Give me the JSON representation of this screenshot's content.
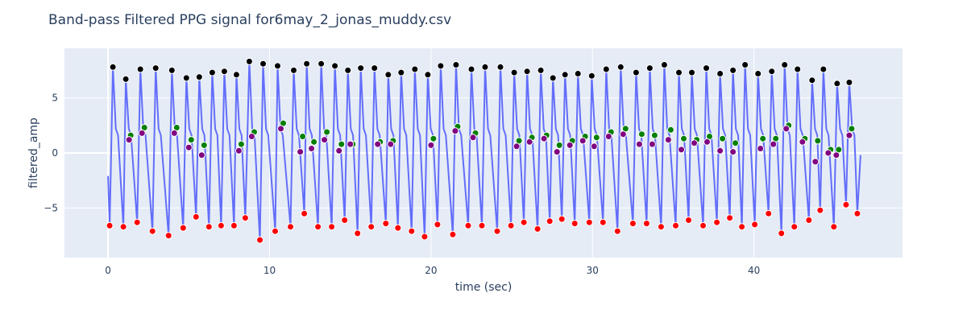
{
  "chart_data": {
    "type": "line",
    "title": "Band-pass Filtered PPG signal for6may_2_jonas_muddy.csv",
    "xlabel": "time (sec)",
    "ylabel": "filtered_amp",
    "xlim": [
      -2.7,
      49.2
    ],
    "ylim": [
      -9.5,
      9.5
    ],
    "x_ticks": [
      0,
      10,
      20,
      30,
      40
    ],
    "y_ticks": [
      -5,
      0,
      5
    ],
    "y_tick_labels": [
      "−5",
      "0",
      "5"
    ],
    "grid": true,
    "legend": "none",
    "background": "#e5ecf6",
    "colors": {
      "line": "#636efa",
      "peaks": "#000000",
      "notches": "#800080",
      "diastolic": "#008000",
      "troughs": "#ff0000"
    },
    "beats": [
      {
        "trough": [
          0.1,
          -6.6
        ],
        "peak": [
          0.3,
          7.8
        ],
        "notch": [
          1.3,
          1.2
        ],
        "diastolic": [
          1.4,
          1.6
        ]
      },
      {
        "trough": [
          0.95,
          -6.7
        ],
        "peak": [
          1.1,
          6.7
        ],
        "notch": [
          2.1,
          1.8
        ],
        "diastolic": [
          2.25,
          2.3
        ]
      },
      {
        "trough": [
          1.8,
          -6.3
        ],
        "peak": [
          2.0,
          7.6
        ],
        "notch": [
          4.1,
          1.8
        ],
        "diastolic": [
          4.25,
          2.3
        ]
      },
      {
        "trough": [
          2.75,
          -7.1
        ],
        "peak": [
          2.95,
          7.7
        ],
        "notch": [
          5.0,
          0.5
        ],
        "diastolic": [
          5.15,
          1.2
        ]
      },
      {
        "trough": [
          3.75,
          -7.5
        ],
        "peak": [
          3.95,
          7.5
        ],
        "notch": [
          5.8,
          -0.2
        ],
        "diastolic": [
          5.95,
          0.7
        ]
      },
      {
        "trough": [
          4.65,
          -6.8
        ],
        "peak": [
          4.85,
          6.8
        ],
        "notch": [
          8.1,
          0.2
        ],
        "diastolic": [
          8.25,
          0.8
        ]
      },
      {
        "trough": [
          5.45,
          -5.8
        ],
        "peak": [
          5.65,
          6.9
        ],
        "notch": [
          8.9,
          1.5
        ],
        "diastolic": [
          9.05,
          1.9
        ]
      },
      {
        "trough": [
          6.25,
          -6.7
        ],
        "peak": [
          6.45,
          7.3
        ],
        "notch": [
          10.7,
          2.2
        ],
        "diastolic": [
          10.85,
          2.7
        ]
      },
      {
        "trough": [
          7.0,
          -6.6
        ],
        "peak": [
          7.2,
          7.4
        ],
        "notch": [
          11.9,
          0.1
        ],
        "diastolic": [
          12.05,
          1.5
        ]
      },
      {
        "trough": [
          7.8,
          -6.6
        ],
        "peak": [
          7.95,
          7.1
        ],
        "notch": [
          12.6,
          0.4
        ],
        "diastolic": [
          12.75,
          1.0
        ]
      },
      {
        "trough": [
          8.5,
          -5.9
        ],
        "peak": [
          8.75,
          8.3
        ],
        "notch": [
          13.4,
          1.2
        ],
        "diastolic": [
          13.55,
          1.9
        ]
      },
      {
        "trough": [
          9.4,
          -7.9
        ],
        "peak": [
          9.6,
          8.1
        ],
        "notch": [
          14.3,
          0.2
        ],
        "diastolic": [
          14.45,
          0.8
        ]
      },
      {
        "trough": [
          10.35,
          -7.1
        ],
        "peak": [
          10.5,
          7.9
        ],
        "notch": [
          15.0,
          0.8
        ],
        "diastolic": [
          15.15,
          0.8
        ]
      },
      {
        "trough": [
          11.3,
          -6.7
        ],
        "peak": [
          11.5,
          7.5
        ],
        "notch": [
          16.7,
          0.8
        ],
        "diastolic": [
          16.85,
          1.0
        ]
      },
      {
        "trough": [
          12.15,
          -5.5
        ],
        "peak": [
          12.3,
          8.1
        ],
        "notch": [
          17.5,
          0.8
        ],
        "diastolic": [
          17.65,
          1.1
        ]
      },
      {
        "trough": [
          13.0,
          -6.7
        ],
        "peak": [
          13.2,
          8.1
        ],
        "notch": [
          20.0,
          0.7
        ],
        "diastolic": [
          20.15,
          1.3
        ]
      },
      {
        "trough": [
          13.85,
          -6.7
        ],
        "peak": [
          14.05,
          7.9
        ],
        "notch": [
          21.5,
          2.0
        ],
        "diastolic": [
          21.65,
          2.4
        ]
      },
      {
        "trough": [
          14.65,
          -6.1
        ],
        "peak": [
          14.85,
          7.5
        ],
        "notch": [
          22.6,
          1.4
        ],
        "diastolic": [
          22.75,
          1.8
        ]
      },
      {
        "trough": [
          15.45,
          -7.3
        ],
        "peak": [
          15.65,
          7.7
        ],
        "notch": [
          25.3,
          0.6
        ],
        "diastolic": [
          25.45,
          1.1
        ]
      },
      {
        "trough": [
          16.3,
          -6.7
        ],
        "peak": [
          16.5,
          7.7
        ],
        "notch": [
          26.1,
          1.0
        ],
        "diastolic": [
          26.25,
          1.4
        ]
      },
      {
        "trough": [
          17.2,
          -6.4
        ],
        "peak": [
          17.35,
          7.1
        ],
        "notch": [
          27.0,
          1.3
        ],
        "diastolic": [
          27.15,
          1.6
        ]
      },
      {
        "trough": [
          17.95,
          -6.8
        ],
        "peak": [
          18.15,
          7.3
        ],
        "notch": [
          27.8,
          0.1
        ],
        "diastolic": [
          27.95,
          0.7
        ]
      },
      {
        "trough": [
          18.8,
          -7.1
        ],
        "peak": [
          19.0,
          7.6
        ],
        "notch": [
          28.6,
          0.7
        ],
        "diastolic": [
          28.75,
          1.1
        ]
      },
      {
        "trough": [
          19.6,
          -7.6
        ],
        "peak": [
          19.8,
          7.1
        ],
        "notch": [
          29.4,
          1.1
        ],
        "diastolic": [
          29.55,
          1.5
        ]
      },
      {
        "trough": [
          20.4,
          -6.5
        ],
        "peak": [
          20.6,
          7.9
        ],
        "notch": [
          30.1,
          0.6
        ],
        "diastolic": [
          30.25,
          1.4
        ]
      },
      {
        "trough": [
          21.35,
          -7.4
        ],
        "peak": [
          21.55,
          8.0
        ],
        "notch": [
          31.0,
          1.5
        ],
        "diastolic": [
          31.15,
          1.9
        ]
      },
      {
        "trough": [
          22.3,
          -6.6
        ],
        "peak": [
          22.5,
          7.6
        ],
        "notch": [
          31.9,
          1.7
        ],
        "diastolic": [
          32.05,
          2.2
        ]
      },
      {
        "trough": [
          23.15,
          -6.6
        ],
        "peak": [
          23.35,
          7.8
        ],
        "notch": [
          32.9,
          0.8
        ],
        "diastolic": [
          33.05,
          1.7
        ]
      },
      {
        "trough": [
          24.1,
          -7.1
        ],
        "peak": [
          24.3,
          7.8
        ],
        "notch": [
          33.7,
          0.8
        ],
        "diastolic": [
          33.85,
          1.6
        ]
      },
      {
        "trough": [
          24.95,
          -6.6
        ],
        "peak": [
          25.15,
          7.3
        ],
        "notch": [
          34.7,
          1.2
        ],
        "diastolic": [
          34.85,
          2.1
        ]
      },
      {
        "trough": [
          25.75,
          -6.3
        ],
        "peak": [
          25.95,
          7.4
        ],
        "notch": [
          35.5,
          0.3
        ],
        "diastolic": [
          35.65,
          1.3
        ]
      },
      {
        "trough": [
          26.6,
          -6.9
        ],
        "peak": [
          26.8,
          7.5
        ],
        "notch": [
          36.3,
          0.9
        ],
        "diastolic": [
          36.45,
          1.2
        ]
      },
      {
        "trough": [
          27.35,
          -6.2
        ],
        "peak": [
          27.55,
          6.8
        ],
        "notch": [
          37.1,
          1.0
        ],
        "diastolic": [
          37.25,
          1.5
        ]
      },
      {
        "trough": [
          28.1,
          -6.0
        ],
        "peak": [
          28.3,
          7.1
        ],
        "notch": [
          37.9,
          0.2
        ],
        "diastolic": [
          38.05,
          1.3
        ]
      },
      {
        "trough": [
          28.9,
          -6.4
        ],
        "peak": [
          29.1,
          7.2
        ],
        "notch": [
          38.7,
          0.1
        ],
        "diastolic": [
          38.85,
          0.9
        ]
      },
      {
        "trough": [
          29.8,
          -6.3
        ],
        "peak": [
          29.95,
          7.0
        ],
        "notch": [
          40.4,
          0.4
        ],
        "diastolic": [
          40.55,
          1.3
        ]
      },
      {
        "trough": [
          30.65,
          -6.3
        ],
        "peak": [
          30.85,
          7.6
        ],
        "notch": [
          41.2,
          0.8
        ],
        "diastolic": [
          41.35,
          1.3
        ]
      },
      {
        "trough": [
          31.55,
          -7.1
        ],
        "peak": [
          31.75,
          7.8
        ],
        "notch": [
          42.0,
          2.2
        ],
        "diastolic": [
          42.15,
          2.5
        ]
      },
      {
        "trough": [
          32.5,
          -6.4
        ],
        "peak": [
          32.7,
          7.3
        ],
        "notch": [
          43.0,
          1.0
        ],
        "diastolic": [
          43.15,
          1.3
        ]
      },
      {
        "trough": [
          33.35,
          -6.4
        ],
        "peak": [
          33.55,
          7.7
        ],
        "notch": [
          43.8,
          -0.8
        ],
        "diastolic": [
          43.95,
          1.1
        ]
      },
      {
        "trough": [
          34.25,
          -6.7
        ],
        "peak": [
          34.45,
          8.0
        ],
        "notch": [
          44.6,
          0.0
        ],
        "diastolic": [
          44.75,
          0.3
        ]
      },
      {
        "trough": [
          35.15,
          -6.6
        ],
        "peak": [
          35.35,
          7.3
        ],
        "notch": [
          45.1,
          -0.2
        ],
        "diastolic": [
          45.25,
          0.3
        ]
      },
      {
        "trough": [
          35.95,
          -6.1
        ],
        "peak": [
          36.15,
          7.3
        ],
        "notch": [
          45.9,
          1.6
        ],
        "diastolic": [
          46.05,
          2.2
        ]
      },
      {
        "trough": [
          36.85,
          -6.6
        ],
        "peak": [
          37.05,
          7.7
        ],
        "notch": null,
        "diastolic": null
      },
      {
        "trough": [
          37.7,
          -6.3
        ],
        "peak": [
          37.9,
          7.2
        ],
        "notch": null,
        "diastolic": null
      },
      {
        "trough": [
          38.5,
          -5.9
        ],
        "peak": [
          38.7,
          7.5
        ],
        "notch": null,
        "diastolic": null
      },
      {
        "trough": [
          39.25,
          -6.7
        ],
        "peak": [
          39.45,
          8.0
        ],
        "notch": null,
        "diastolic": null
      },
      {
        "trough": [
          40.05,
          -6.5
        ],
        "peak": [
          40.25,
          7.2
        ],
        "notch": null,
        "diastolic": null
      },
      {
        "trough": [
          40.9,
          -5.5
        ],
        "peak": [
          41.1,
          7.4
        ],
        "notch": null,
        "diastolic": null
      },
      {
        "trough": [
          41.7,
          -7.3
        ],
        "peak": [
          41.9,
          8.0
        ],
        "notch": null,
        "diastolic": null
      },
      {
        "trough": [
          42.5,
          -6.7
        ],
        "peak": [
          42.7,
          7.6
        ],
        "notch": null,
        "diastolic": null
      },
      {
        "trough": [
          43.4,
          -6.1
        ],
        "peak": [
          43.6,
          6.6
        ],
        "notch": null,
        "diastolic": null
      },
      {
        "trough": [
          44.1,
          -5.2
        ],
        "peak": [
          44.3,
          7.6
        ],
        "notch": null,
        "diastolic": null
      },
      {
        "trough": [
          44.95,
          -6.7
        ],
        "peak": [
          45.15,
          6.3
        ],
        "notch": null,
        "diastolic": null
      },
      {
        "trough": [
          45.7,
          -4.7
        ],
        "peak": [
          45.9,
          6.4
        ],
        "notch": null,
        "diastolic": null
      },
      {
        "trough": [
          46.4,
          -5.5
        ],
        "peak": null,
        "notch": null,
        "diastolic": null
      }
    ],
    "series_start": [
      0.0,
      -2.1
    ],
    "series_end": [
      46.6,
      -0.2
    ]
  }
}
